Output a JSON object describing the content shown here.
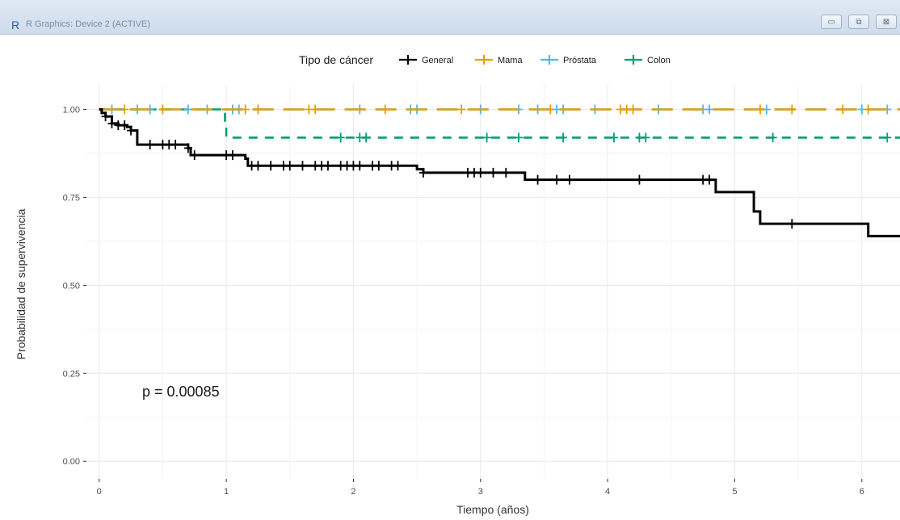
{
  "window": {
    "title": "R Graphics: Device 2 (ACTIVE)",
    "buttons": {
      "minimize": "▭",
      "maximize": "⧉",
      "close": "⊠"
    }
  },
  "chart_data": {
    "type": "line",
    "subtype": "kaplan-meier step curves",
    "xlabel": "Tiempo (años)",
    "ylabel": "Probabilidad de supervivencia",
    "xlim": [
      -0.1,
      6.3
    ],
    "ylim": [
      -0.05,
      1.07
    ],
    "x_ticks": [
      0,
      1,
      2,
      3,
      4,
      5,
      6
    ],
    "y_ticks": [
      0,
      0.25,
      0.5,
      0.75,
      1
    ],
    "y_tick_labels": [
      "0.00",
      "0.25",
      "0.50",
      "0.75",
      "1.00"
    ],
    "grid": true,
    "legend": {
      "title": "Tipo de cáncer",
      "position": "top"
    },
    "annotation": "p = 0.00085",
    "series": [
      {
        "name": "General",
        "color": "#000000",
        "dashed": false,
        "steps": [
          [
            0,
            1.0
          ],
          [
            0.02,
            0.99
          ],
          [
            0.05,
            0.98
          ],
          [
            0.1,
            0.96
          ],
          [
            0.15,
            0.955
          ],
          [
            0.22,
            0.95
          ],
          [
            0.25,
            0.94
          ],
          [
            0.3,
            0.92
          ],
          [
            0.3,
            0.9
          ],
          [
            0.45,
            0.9
          ],
          [
            0.7,
            0.89
          ],
          [
            0.72,
            0.87
          ],
          [
            1.05,
            0.87
          ],
          [
            1.15,
            0.86
          ],
          [
            1.17,
            0.84
          ],
          [
            2.35,
            0.84
          ],
          [
            2.5,
            0.83
          ],
          [
            2.55,
            0.82
          ],
          [
            3.35,
            0.82
          ],
          [
            3.35,
            0.8
          ],
          [
            4.85,
            0.8
          ],
          [
            4.85,
            0.765
          ],
          [
            5.15,
            0.765
          ],
          [
            5.15,
            0.71
          ],
          [
            5.2,
            0.71
          ],
          [
            5.2,
            0.675
          ],
          [
            6.05,
            0.675
          ],
          [
            6.05,
            0.64
          ],
          [
            6.3,
            0.64
          ]
        ],
        "censor_x": [
          0.05,
          0.1,
          0.15,
          0.2,
          0.25,
          0.4,
          0.5,
          0.55,
          0.6,
          0.7,
          0.75,
          1.0,
          1.05,
          1.2,
          1.25,
          1.35,
          1.45,
          1.5,
          1.6,
          1.7,
          1.75,
          1.8,
          1.9,
          1.95,
          2.0,
          2.05,
          2.15,
          2.2,
          2.3,
          2.35,
          2.55,
          2.9,
          2.95,
          3.0,
          3.1,
          3.2,
          3.45,
          3.6,
          3.7,
          4.25,
          4.75,
          4.8,
          5.45
        ]
      },
      {
        "name": "Mama",
        "color": "#E69F00",
        "dashed": true,
        "steps": [
          [
            0,
            1.0
          ],
          [
            6.3,
            1.0
          ]
        ],
        "censor_x": [
          0.2,
          0.5,
          1.15,
          1.25,
          1.65,
          1.7,
          2.25,
          2.85,
          3.55,
          4.1,
          4.15,
          4.2,
          5.2,
          5.45,
          5.85,
          6.05
        ]
      },
      {
        "name": "Próstata",
        "color": "#56B4E9",
        "dashed": true,
        "steps": [
          [
            0,
            1.0
          ],
          [
            6.3,
            1.0
          ]
        ],
        "censor_x": [
          0.1,
          0.3,
          0.4,
          0.7,
          0.85,
          1.05,
          1.1,
          2.05,
          2.45,
          2.5,
          3.0,
          3.3,
          3.45,
          3.6,
          3.65,
          3.9,
          4.4,
          4.75,
          4.8,
          5.25,
          6.0,
          6.2
        ]
      },
      {
        "name": "Colon",
        "color": "#009E73",
        "dashed": true,
        "steps": [
          [
            0,
            1.0
          ],
          [
            0.99,
            1.0
          ],
          [
            0.99,
            0.955
          ],
          [
            1.0,
            0.955
          ],
          [
            1.0,
            0.92
          ],
          [
            6.3,
            0.92
          ]
        ],
        "censor_x": [
          1.9,
          2.05,
          2.1,
          3.05,
          3.3,
          3.65,
          4.05,
          4.25,
          4.3,
          5.3,
          6.2
        ]
      }
    ]
  }
}
